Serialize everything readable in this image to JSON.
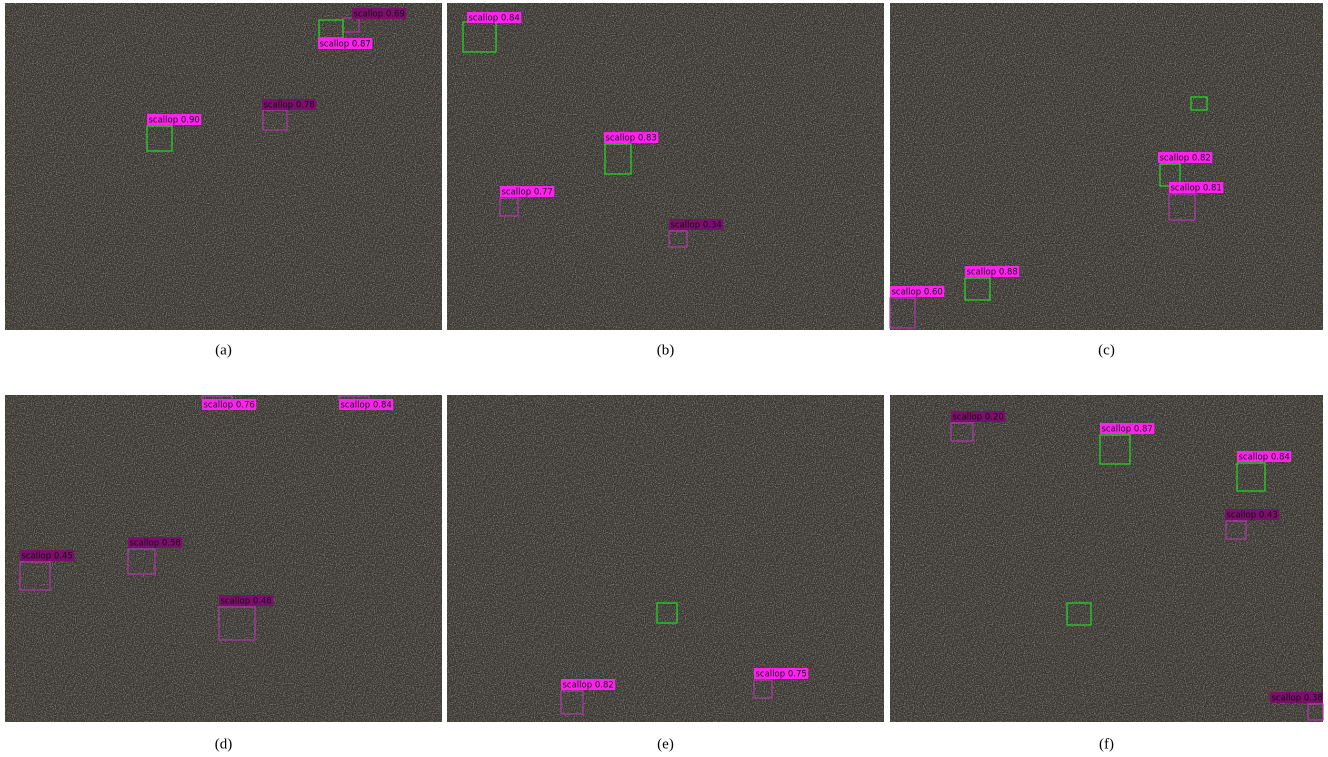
{
  "panels": [
    {
      "caption": "(a)",
      "detections": [
        {
          "label": "scallop 0.69"
        },
        {
          "label": "scallop 0.87"
        },
        {
          "label": "scallop 0.78"
        },
        {
          "label": "scallop 0.90"
        }
      ]
    },
    {
      "caption": "(b)",
      "detections": [
        {
          "label": "scallop 0.84"
        },
        {
          "label": "scallop 0.83"
        },
        {
          "label": "scallop 0.77"
        },
        {
          "label": "scallop 0.34"
        }
      ]
    },
    {
      "caption": "(c)",
      "detections": [
        {
          "label": "scallop 0.82"
        },
        {
          "label": "scallop 0.81"
        },
        {
          "label": "scallop 0.88"
        },
        {
          "label": "scallop 0.60"
        }
      ]
    },
    {
      "caption": "(d)",
      "detections": [
        {
          "label": "scallop 0.76"
        },
        {
          "label": "scallop 0.84"
        },
        {
          "label": "scallop 0.45"
        },
        {
          "label": "scallop 0.58"
        },
        {
          "label": "scallop 0.48"
        }
      ]
    },
    {
      "caption": "(e)",
      "detections": [
        {
          "label": "scallop 0.82"
        },
        {
          "label": "scallop 0.75"
        }
      ]
    },
    {
      "caption": "(f)",
      "detections": [
        {
          "label": "scallop 0.20"
        },
        {
          "label": "scallop 0.87"
        },
        {
          "label": "scallop 0.84"
        },
        {
          "label": "scallop 0.43"
        },
        {
          "label": "scallop 0.38"
        }
      ]
    }
  ]
}
